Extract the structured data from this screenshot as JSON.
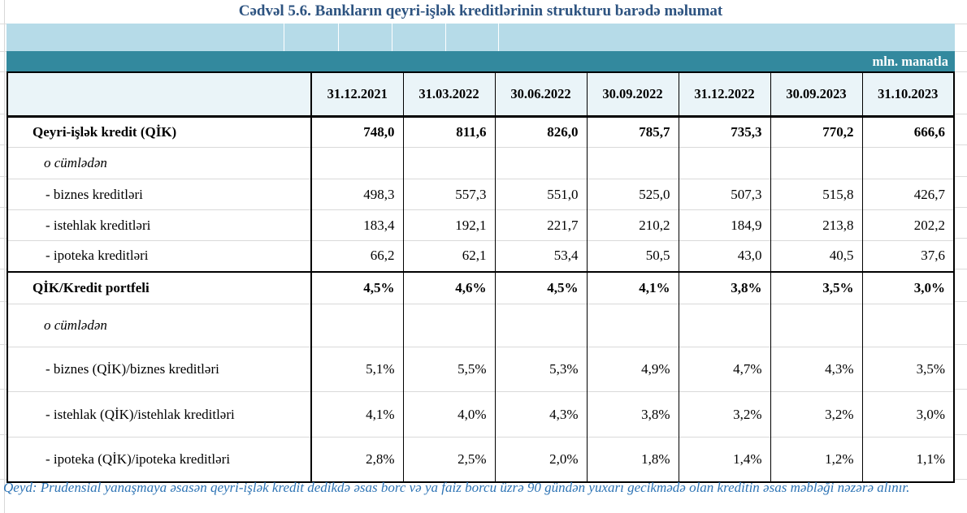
{
  "title": "Cədvəl 5.6. Bankların qeyri-işlək kreditlərinin strukturu barədə məlumat",
  "unit_label": "mln. manatla",
  "table": {
    "columns": [
      "31.12.2021",
      "31.03.2022",
      "30.06.2022",
      "30.09.2022",
      "31.12.2022",
      "30.09.2023",
      "31.10.2023"
    ],
    "rows": [
      {
        "kind": "section",
        "label": "Qeyri-işlək kredit (QİK)",
        "values": [
          "748,0",
          "811,6",
          "826,0",
          "785,7",
          "735,3",
          "770,2",
          "666,6"
        ]
      },
      {
        "kind": "subhead",
        "label": "o cümlədən",
        "values": [
          "",
          "",
          "",
          "",
          "",
          "",
          ""
        ]
      },
      {
        "kind": "item",
        "label": "- biznes kreditləri",
        "values": [
          "498,3",
          "557,3",
          "551,0",
          "525,0",
          "507,3",
          "515,8",
          "426,7"
        ]
      },
      {
        "kind": "item",
        "label": "- istehlak kreditləri",
        "values": [
          "183,4",
          "192,1",
          "221,7",
          "210,2",
          "184,9",
          "213,8",
          "202,2"
        ]
      },
      {
        "kind": "item",
        "label": "- ipoteka kreditləri",
        "values": [
          "66,2",
          "62,1",
          "53,4",
          "50,5",
          "43,0",
          "40,5",
          "37,6"
        ]
      },
      {
        "kind": "section",
        "label": "QİK/Kredit portfeli",
        "values": [
          "4,5%",
          "4,6%",
          "4,5%",
          "4,1%",
          "3,8%",
          "3,5%",
          "3,0%"
        ]
      },
      {
        "kind": "subhead",
        "label": "o cümlədən",
        "values": [
          "",
          "",
          "",
          "",
          "",
          "",
          ""
        ]
      },
      {
        "kind": "item",
        "label": "- biznes (QİK)/biznes kreditləri",
        "values": [
          "5,1%",
          "5,5%",
          "5,3%",
          "4,9%",
          "4,7%",
          "4,3%",
          "3,5%"
        ]
      },
      {
        "kind": "item",
        "label": "- istehlak (QİK)/istehlak kreditləri",
        "values": [
          "4,1%",
          "4,0%",
          "4,3%",
          "3,8%",
          "3,2%",
          "3,2%",
          "3,0%"
        ]
      },
      {
        "kind": "item",
        "label": "- ipoteka (QİK)/ipoteka kreditləri",
        "values": [
          "2,8%",
          "2,5%",
          "2,0%",
          "1,8%",
          "1,4%",
          "1,2%",
          "1,1%"
        ]
      }
    ]
  },
  "note": "Qeyd: Prudensial yanaşmaya əsasən qeyri-işlək kredit dedikdə əsas borc və ya faiz borcu üzrə 90 gündən yuxarı gecikmədə olan kreditin əsas məbləği nəzərə alınır.",
  "colors": {
    "teal_band": "#33899E",
    "light_band": "#B6DBE8",
    "header_bg": "#EAF4F8",
    "title_text": "#2D5380",
    "note_text": "#2E74B5",
    "grid_divider": "#D9D9D9"
  }
}
